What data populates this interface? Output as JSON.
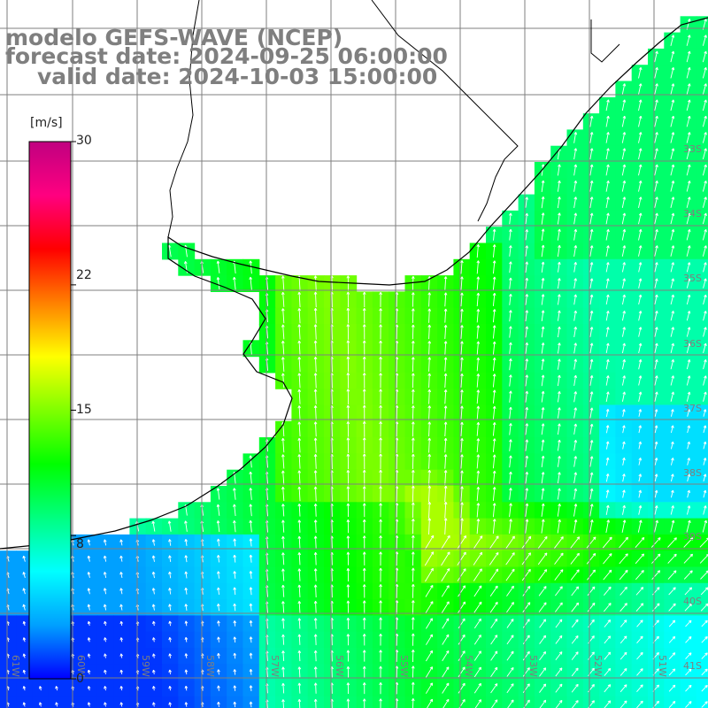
{
  "header": {
    "line1": "modelo GEFS-WAVE (NCEP)",
    "line2": "forecast date: 2024-09-25 06:00:00",
    "line3": "valid date: 2024-10-03 15:00:00"
  },
  "colorbar": {
    "unit": "[m/s]",
    "ticks": [
      "30",
      "22",
      "15",
      "8",
      "0"
    ],
    "tick_values": [
      30,
      22,
      15,
      8,
      0
    ],
    "min": 0,
    "max": 30,
    "colors": [
      "#0000ff",
      "#00a0ff",
      "#00ffff",
      "#00ff80",
      "#00ff00",
      "#80ff00",
      "#ffff00",
      "#ff8000",
      "#ff0000",
      "#ff0080",
      "#c00080"
    ]
  },
  "axes": {
    "lon_labels": [
      "61W",
      "60W",
      "59W",
      "58W",
      "57W",
      "56W",
      "55W",
      "54W",
      "53W",
      "52W",
      "51W"
    ],
    "lat_labels": [
      "33S",
      "34S",
      "35S",
      "36S",
      "37S",
      "38S",
      "39S",
      "40S",
      "41S"
    ]
  },
  "colors": {
    "land": "#ffffff",
    "grid": "#7f7f7f",
    "coast": "#000000",
    "arrow": "#ffffff",
    "title": "#7f7f7f"
  }
}
